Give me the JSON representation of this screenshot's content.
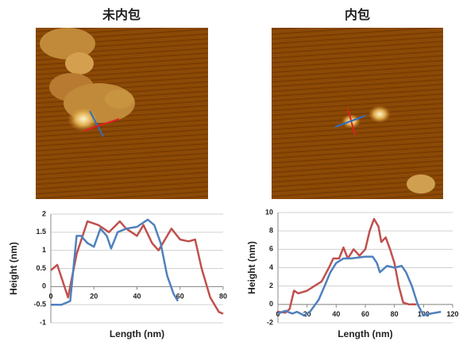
{
  "chart_data": [
    {
      "type": "line",
      "title": "未内包",
      "x_label": "Length (nm)",
      "y_label": "Height (nm)",
      "xlim": [
        0,
        80
      ],
      "xticks": [
        0,
        20,
        40,
        60,
        80
      ],
      "ylim": [
        -1,
        2
      ],
      "yticks": [
        -1,
        -0.5,
        0,
        0.5,
        1,
        1.5,
        2
      ],
      "grid": true,
      "series": [
        {
          "color": "#c0504d",
          "x": [
            0,
            3,
            8,
            12,
            17,
            22,
            27,
            32,
            35,
            40,
            43,
            47,
            50,
            53,
            56,
            60,
            64,
            67,
            70,
            74,
            78,
            80
          ],
          "values": [
            0.45,
            0.6,
            -0.3,
            0.9,
            1.8,
            1.7,
            1.5,
            1.8,
            1.6,
            1.4,
            1.7,
            1.2,
            1.0,
            1.3,
            1.6,
            1.3,
            1.25,
            1.3,
            0.5,
            -0.3,
            -0.7,
            -0.75
          ]
        },
        {
          "color": "#4f81bd",
          "x": [
            0,
            5,
            9,
            12,
            14,
            17,
            20,
            23,
            26,
            28,
            31,
            35,
            40,
            45,
            48,
            51,
            54,
            57,
            59
          ],
          "values": [
            -0.5,
            -0.5,
            -0.4,
            1.4,
            1.4,
            1.2,
            1.1,
            1.6,
            1.4,
            1.05,
            1.5,
            1.6,
            1.65,
            1.85,
            1.7,
            1.2,
            0.3,
            -0.2,
            -0.4
          ]
        }
      ]
    },
    {
      "type": "line",
      "title": "内包",
      "x_label": "Length (nm)",
      "y_label": "Height (nm)",
      "xlim": [
        0,
        120
      ],
      "xticks": [
        0,
        20,
        40,
        60,
        80,
        100,
        120
      ],
      "ylim": [
        -2,
        10
      ],
      "yticks": [
        -2,
        0,
        2,
        4,
        6,
        8,
        10
      ],
      "grid": true,
      "series": [
        {
          "color": "#c0504d",
          "x": [
            0,
            5,
            8,
            11,
            14,
            20,
            25,
            30,
            35,
            38,
            42,
            45,
            48,
            52,
            56,
            60,
            63,
            66,
            69,
            71,
            74,
            77,
            80,
            83,
            86,
            90,
            95
          ],
          "values": [
            -0.8,
            -0.9,
            -0.5,
            1.5,
            1.2,
            1.5,
            2,
            2.5,
            4,
            5,
            5,
            6.2,
            5,
            6,
            5.3,
            6,
            8,
            9.3,
            8.5,
            6.8,
            7.3,
            6,
            4.5,
            2,
            0.2,
            0,
            0
          ]
        },
        {
          "color": "#4f81bd",
          "x": [
            0,
            5,
            10,
            13,
            18,
            22,
            28,
            32,
            36,
            40,
            45,
            50,
            55,
            60,
            65,
            68,
            70,
            75,
            80,
            85,
            88,
            92,
            96,
            100,
            105,
            112
          ],
          "values": [
            -1,
            -0.7,
            -1,
            -0.8,
            -1.2,
            -0.8,
            0.5,
            2,
            3.5,
            4.5,
            5,
            5,
            5.1,
            5.2,
            5.2,
            4.5,
            3.5,
            4.2,
            4,
            4.2,
            3.5,
            2,
            0,
            -1.2,
            -1,
            -0.8
          ]
        }
      ]
    }
  ]
}
